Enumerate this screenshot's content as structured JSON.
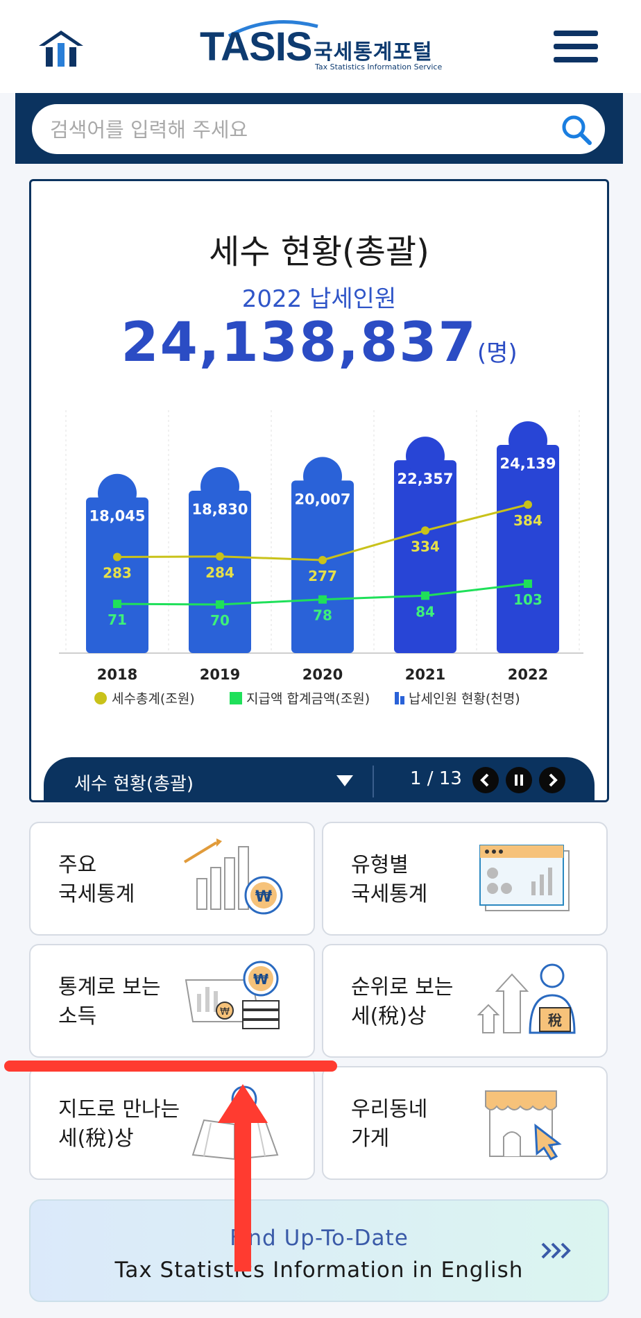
{
  "header": {
    "logo_text": "TASIS",
    "logo_ko": "국세통계포털",
    "logo_en": "Tax Statistics Information Service"
  },
  "search": {
    "placeholder": "검색어를 입력해 주세요"
  },
  "card": {
    "title": "세수 현황(총괄)",
    "subtitle": "2022 납세인원",
    "value": "24,138,837",
    "unit": "(명)"
  },
  "chart_data": {
    "type": "bar",
    "categories": [
      "2018",
      "2019",
      "2020",
      "2021",
      "2022"
    ],
    "series": [
      {
        "name": "납세인원 현황(천명)",
        "kind": "bar",
        "values": [
          18045,
          18830,
          20007,
          22357,
          24139
        ],
        "labels": [
          "18,045",
          "18,830",
          "20,007",
          "22,357",
          "24,139"
        ]
      },
      {
        "name": "세수총계(조원)",
        "kind": "line",
        "values": [
          283,
          284,
          277,
          334,
          384
        ]
      },
      {
        "name": "지급액 합계금액(조원)",
        "kind": "line",
        "values": [
          71,
          70,
          78,
          84,
          103
        ]
      }
    ],
    "legend_position": "bottom",
    "colors": {
      "bar": "#2a62d8",
      "bar_dark": "#2845d6",
      "tax": "#c9c21a",
      "payment": "#1fe05a"
    }
  },
  "slider": {
    "label": "세수 현황(총괄)",
    "page": "1 / 13"
  },
  "tiles": [
    {
      "label": "주요\n국세통계",
      "icon": "bar-chart-won-icon"
    },
    {
      "label": "유형별\n국세통계",
      "icon": "dashboard-window-icon"
    },
    {
      "label": "통계로 보는\n소득",
      "icon": "income-stats-icon"
    },
    {
      "label": "순위로 보는\n세(稅)상",
      "icon": "ranking-tax-icon"
    },
    {
      "label": "지도로 만나는\n세(稅)상",
      "icon": "map-book-icon"
    },
    {
      "label": "우리동네\n가게",
      "icon": "storefront-icon"
    }
  ],
  "english_banner": {
    "line1": "Find Up-To-Date",
    "line2": "Tax Statistics Information in English",
    "arrows": "›››"
  }
}
